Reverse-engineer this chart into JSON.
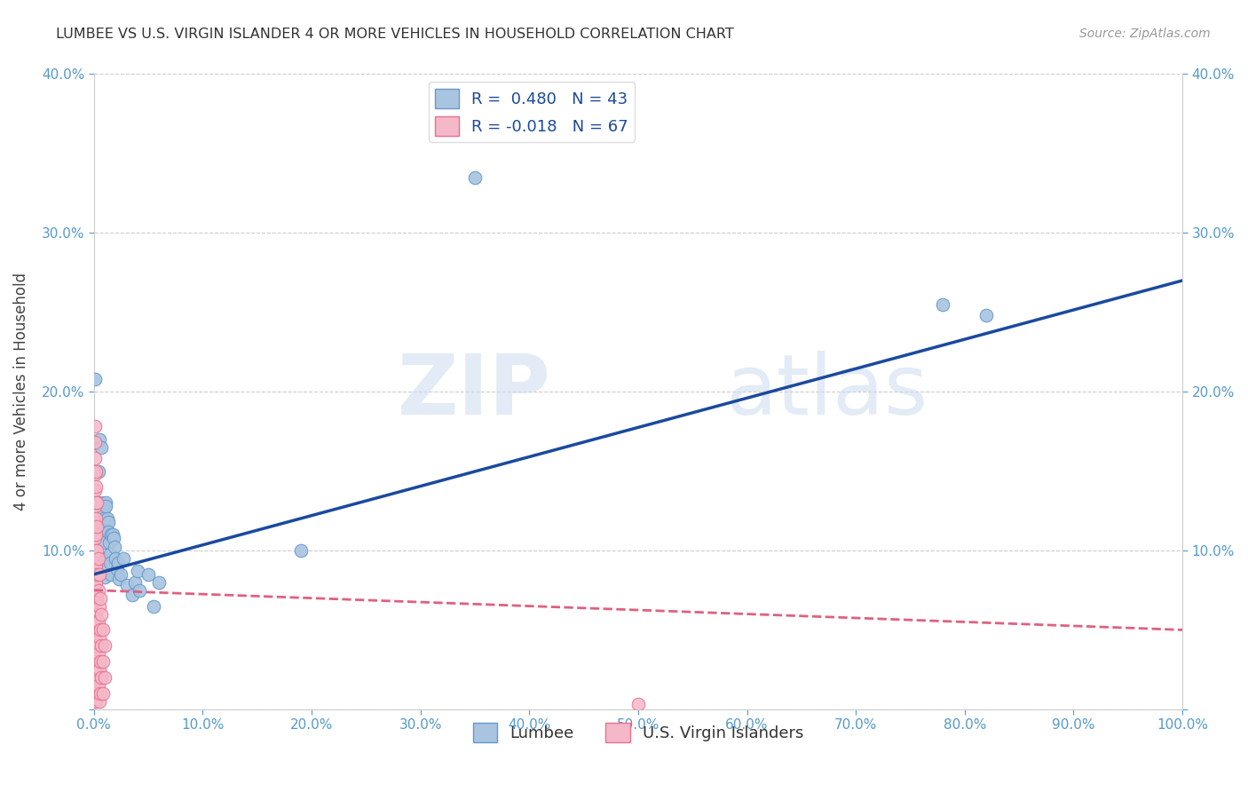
{
  "title": "LUMBEE VS U.S. VIRGIN ISLANDER 4 OR MORE VEHICLES IN HOUSEHOLD CORRELATION CHART",
  "source": "Source: ZipAtlas.com",
  "ylabel": "4 or more Vehicles in Household",
  "xlim": [
    0,
    1.0
  ],
  "ylim": [
    0,
    0.4
  ],
  "xticks": [
    0.0,
    0.1,
    0.2,
    0.3,
    0.4,
    0.5,
    0.6,
    0.7,
    0.8,
    0.9,
    1.0
  ],
  "yticks": [
    0.0,
    0.1,
    0.2,
    0.3,
    0.4
  ],
  "xtick_labels": [
    "0.0%",
    "10.0%",
    "20.0%",
    "30.0%",
    "40.0%",
    "50.0%",
    "60.0%",
    "70.0%",
    "80.0%",
    "90.0%",
    "100.0%"
  ],
  "ytick_labels": [
    "",
    "10.0%",
    "20.0%",
    "30.0%",
    "40.0%"
  ],
  "lumbee_color": "#a8c4e0",
  "lumbee_edge_color": "#6699cc",
  "virgin_color": "#f4b8c8",
  "virgin_edge_color": "#e87090",
  "lumbee_line_color": "#1a4a9e",
  "virgin_line_color": "#e06080",
  "R_lumbee": 0.48,
  "N_lumbee": 43,
  "R_virgin": -0.018,
  "N_virgin": 67,
  "legend_label_lumbee": "Lumbee",
  "legend_label_virgin": "U.S. Virgin Islanders",
  "watermark_zip": "ZIP",
  "watermark_atlas": "atlas",
  "title_color": "#333333",
  "axis_color": "#5599cc",
  "lumbee_line_x": [
    0.0,
    1.0
  ],
  "lumbee_line_y": [
    0.085,
    0.27
  ],
  "virgin_line_x": [
    0.0,
    1.0
  ],
  "virgin_line_y": [
    0.075,
    0.05
  ],
  "lumbee_points": [
    [
      0.001,
      0.208
    ],
    [
      0.004,
      0.15
    ],
    [
      0.005,
      0.17
    ],
    [
      0.006,
      0.13
    ],
    [
      0.007,
      0.165
    ],
    [
      0.008,
      0.125
    ],
    [
      0.008,
      0.113
    ],
    [
      0.009,
      0.12
    ],
    [
      0.009,
      0.105
    ],
    [
      0.01,
      0.095
    ],
    [
      0.01,
      0.09
    ],
    [
      0.01,
      0.083
    ],
    [
      0.011,
      0.13
    ],
    [
      0.011,
      0.128
    ],
    [
      0.012,
      0.12
    ],
    [
      0.013,
      0.118
    ],
    [
      0.013,
      0.112
    ],
    [
      0.014,
      0.105
    ],
    [
      0.015,
      0.098
    ],
    [
      0.015,
      0.092
    ],
    [
      0.016,
      0.11
    ],
    [
      0.016,
      0.085
    ],
    [
      0.017,
      0.11
    ],
    [
      0.018,
      0.108
    ],
    [
      0.019,
      0.102
    ],
    [
      0.02,
      0.095
    ],
    [
      0.021,
      0.088
    ],
    [
      0.022,
      0.092
    ],
    [
      0.023,
      0.082
    ],
    [
      0.025,
      0.085
    ],
    [
      0.027,
      0.095
    ],
    [
      0.03,
      0.078
    ],
    [
      0.035,
      0.072
    ],
    [
      0.038,
      0.08
    ],
    [
      0.04,
      0.087
    ],
    [
      0.042,
      0.075
    ],
    [
      0.05,
      0.085
    ],
    [
      0.055,
      0.065
    ],
    [
      0.06,
      0.08
    ],
    [
      0.19,
      0.1
    ],
    [
      0.35,
      0.335
    ],
    [
      0.78,
      0.255
    ],
    [
      0.82,
      0.248
    ]
  ],
  "virgin_points": [
    [
      0.001,
      0.178
    ],
    [
      0.001,
      0.168
    ],
    [
      0.001,
      0.158
    ],
    [
      0.001,
      0.148
    ],
    [
      0.001,
      0.138
    ],
    [
      0.001,
      0.128
    ],
    [
      0.001,
      0.118
    ],
    [
      0.001,
      0.108
    ],
    [
      0.001,
      0.098
    ],
    [
      0.001,
      0.088
    ],
    [
      0.001,
      0.078
    ],
    [
      0.001,
      0.068
    ],
    [
      0.001,
      0.058
    ],
    [
      0.001,
      0.048
    ],
    [
      0.001,
      0.038
    ],
    [
      0.001,
      0.028
    ],
    [
      0.001,
      0.018
    ],
    [
      0.001,
      0.01
    ],
    [
      0.001,
      0.005
    ],
    [
      0.002,
      0.15
    ],
    [
      0.002,
      0.14
    ],
    [
      0.002,
      0.13
    ],
    [
      0.002,
      0.12
    ],
    [
      0.002,
      0.11
    ],
    [
      0.002,
      0.1
    ],
    [
      0.002,
      0.09
    ],
    [
      0.002,
      0.08
    ],
    [
      0.002,
      0.07
    ],
    [
      0.002,
      0.06
    ],
    [
      0.002,
      0.05
    ],
    [
      0.002,
      0.04
    ],
    [
      0.002,
      0.03
    ],
    [
      0.002,
      0.02
    ],
    [
      0.002,
      0.01
    ],
    [
      0.002,
      0.005
    ],
    [
      0.003,
      0.13
    ],
    [
      0.003,
      0.115
    ],
    [
      0.003,
      0.1
    ],
    [
      0.003,
      0.085
    ],
    [
      0.003,
      0.07
    ],
    [
      0.003,
      0.055
    ],
    [
      0.003,
      0.04
    ],
    [
      0.003,
      0.025
    ],
    [
      0.003,
      0.01
    ],
    [
      0.004,
      0.095
    ],
    [
      0.004,
      0.075
    ],
    [
      0.004,
      0.055
    ],
    [
      0.004,
      0.035
    ],
    [
      0.004,
      0.015
    ],
    [
      0.005,
      0.085
    ],
    [
      0.005,
      0.065
    ],
    [
      0.005,
      0.045
    ],
    [
      0.005,
      0.025
    ],
    [
      0.005,
      0.005
    ],
    [
      0.006,
      0.07
    ],
    [
      0.006,
      0.05
    ],
    [
      0.006,
      0.03
    ],
    [
      0.006,
      0.01
    ],
    [
      0.007,
      0.06
    ],
    [
      0.007,
      0.04
    ],
    [
      0.007,
      0.02
    ],
    [
      0.008,
      0.05
    ],
    [
      0.008,
      0.03
    ],
    [
      0.008,
      0.01
    ],
    [
      0.01,
      0.04
    ],
    [
      0.01,
      0.02
    ],
    [
      0.5,
      0.003
    ]
  ],
  "background_color": "#ffffff",
  "grid_color": "#cccccc"
}
